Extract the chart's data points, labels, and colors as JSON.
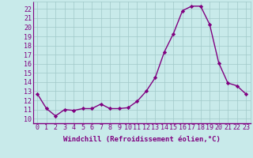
{
  "x": [
    0,
    1,
    2,
    3,
    4,
    5,
    6,
    7,
    8,
    9,
    10,
    11,
    12,
    13,
    14,
    15,
    16,
    17,
    18,
    19,
    20,
    21,
    22,
    23
  ],
  "y": [
    12.7,
    11.1,
    10.3,
    11.0,
    10.9,
    11.1,
    11.1,
    11.6,
    11.1,
    11.1,
    11.2,
    11.9,
    13.0,
    14.5,
    17.3,
    19.3,
    21.8,
    22.3,
    22.3,
    20.3,
    16.1,
    13.9,
    13.6,
    12.7
  ],
  "line_color": "#800080",
  "marker": "D",
  "markersize": 2.2,
  "bg_color": "#c8eaea",
  "grid_color": "#a0c8c8",
  "xlabel": "Windchill (Refroidissement éolien,°C)",
  "xlabel_fontsize": 6.5,
  "ylabel_ticks": [
    10,
    11,
    12,
    13,
    14,
    15,
    16,
    17,
    18,
    19,
    20,
    21,
    22
  ],
  "ylim": [
    9.5,
    22.8
  ],
  "xlim": [
    -0.5,
    23.5
  ],
  "tick_fontsize": 6.0,
  "linewidth": 1.0,
  "spine_color": "#800080",
  "label_color": "#800080"
}
